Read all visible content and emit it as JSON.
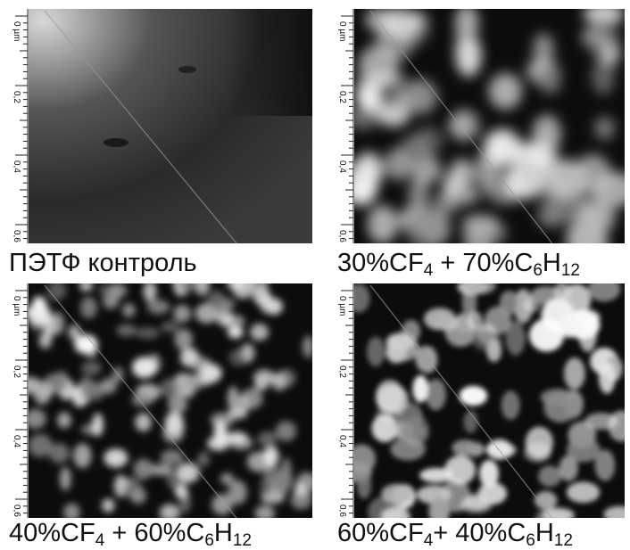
{
  "panels": [
    {
      "caption": [
        "ПЭТФ контроль"
      ],
      "ruler_labels": [
        "0 µm",
        "0,2",
        "0,4",
        "0,6"
      ]
    },
    {
      "caption": [
        "30%CF",
        "4",
        " + 70%C",
        "6",
        "H",
        "12"
      ],
      "ruler_labels": [
        "0 µm",
        "0,2",
        "0,4",
        "0,6"
      ]
    },
    {
      "caption": [
        "40%CF",
        "4",
        " + 60%C",
        "6",
        "H",
        "12"
      ],
      "ruler_labels": [
        "0 µm",
        "0,2",
        "0,4",
        "0,6"
      ]
    },
    {
      "caption": [
        "60%CF",
        "4",
        "+ 40%C",
        "6",
        "H",
        "12"
      ],
      "ruler_labels": [
        "0 µm",
        "0,2",
        "0,4",
        "0,6"
      ]
    }
  ]
}
